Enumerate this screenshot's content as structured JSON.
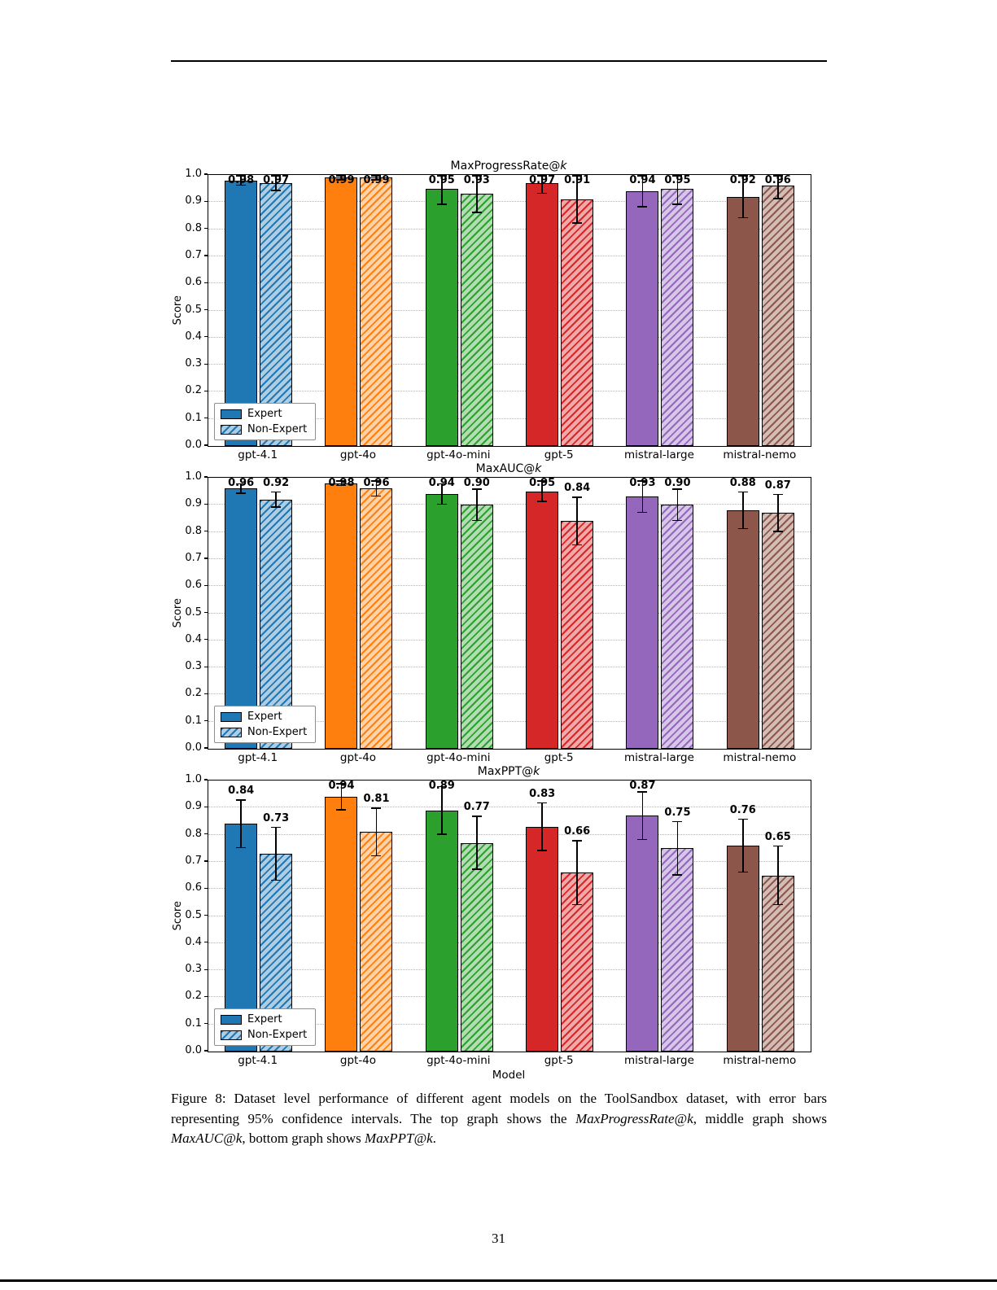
{
  "page": {
    "number": "31"
  },
  "caption": {
    "label": "Figure 8:",
    "before": " Dataset level performance of different agent models on the ToolSandbox dataset, with error bars representing 95% confidence intervals. The top graph shows the ",
    "math1": "MaxProgressRate@k",
    "mid1": ", middle graph shows ",
    "math2": "MaxAUC@k",
    "mid2": ", bottom graph shows ",
    "math3": "MaxPPT@k",
    "after": "."
  },
  "axis": {
    "yticks": [
      "0.0",
      "0.1",
      "0.2",
      "0.3",
      "0.4",
      "0.5",
      "0.6",
      "0.7",
      "0.8",
      "0.9",
      "1.0"
    ]
  },
  "colors": {
    "bar": [
      "#1f77b4",
      "#ff7f0e",
      "#2ca02c",
      "#d62728",
      "#9467bd",
      "#8c564b"
    ],
    "bar_light": [
      "#aecde3",
      "#ffd2a8",
      "#b2ddb2",
      "#f0a8a9",
      "#d6c6e7",
      "#d3bcb6"
    ],
    "edge": "#000000"
  },
  "chart_data": [
    {
      "type": "bar",
      "title": "MaxProgressRate@k",
      "categories": [
        "gpt-4.1",
        "gpt-4o",
        "gpt-4o-mini",
        "gpt-5",
        "mistral-large",
        "mistral-nemo"
      ],
      "series": [
        {
          "name": "Expert",
          "values": [
            0.98,
            0.99,
            0.95,
            0.97,
            0.94,
            0.92
          ],
          "errors": [
            0.02,
            0.01,
            0.06,
            0.04,
            0.06,
            0.08
          ]
        },
        {
          "name": "Non-Expert",
          "values": [
            0.97,
            0.99,
            0.93,
            0.91,
            0.95,
            0.96
          ],
          "errors": [
            0.03,
            0.01,
            0.07,
            0.09,
            0.06,
            0.05
          ]
        }
      ],
      "ylabel": "Score",
      "xlabel": "",
      "ylim": [
        0.0,
        1.0
      ],
      "grid": true,
      "legend_position": "lower left"
    },
    {
      "type": "bar",
      "title": "MaxAUC@k",
      "categories": [
        "gpt-4.1",
        "gpt-4o",
        "gpt-4o-mini",
        "gpt-5",
        "mistral-large",
        "mistral-nemo"
      ],
      "series": [
        {
          "name": "Expert",
          "values": [
            0.96,
            0.98,
            0.94,
            0.95,
            0.93,
            0.88
          ],
          "errors": [
            0.02,
            0.01,
            0.04,
            0.04,
            0.06,
            0.07
          ]
        },
        {
          "name": "Non-Expert",
          "values": [
            0.92,
            0.96,
            0.9,
            0.84,
            0.9,
            0.87
          ],
          "errors": [
            0.03,
            0.03,
            0.06,
            0.09,
            0.06,
            0.07
          ]
        }
      ],
      "ylabel": "Score",
      "xlabel": "",
      "ylim": [
        0.0,
        1.0
      ],
      "grid": true,
      "legend_position": "lower left"
    },
    {
      "type": "bar",
      "title": "MaxPPT@k",
      "categories": [
        "gpt-4.1",
        "gpt-4o",
        "gpt-4o-mini",
        "gpt-5",
        "mistral-large",
        "mistral-nemo"
      ],
      "series": [
        {
          "name": "Expert",
          "values": [
            0.84,
            0.94,
            0.89,
            0.83,
            0.87,
            0.76
          ],
          "errors": [
            0.09,
            0.05,
            0.09,
            0.09,
            0.09,
            0.1
          ]
        },
        {
          "name": "Non-Expert",
          "values": [
            0.73,
            0.81,
            0.77,
            0.66,
            0.75,
            0.65
          ],
          "errors": [
            0.1,
            0.09,
            0.1,
            0.12,
            0.1,
            0.11
          ]
        }
      ],
      "ylabel": "Score",
      "xlabel": "Model",
      "ylim": [
        0.0,
        1.0
      ],
      "grid": true,
      "legend_position": "lower left"
    }
  ]
}
